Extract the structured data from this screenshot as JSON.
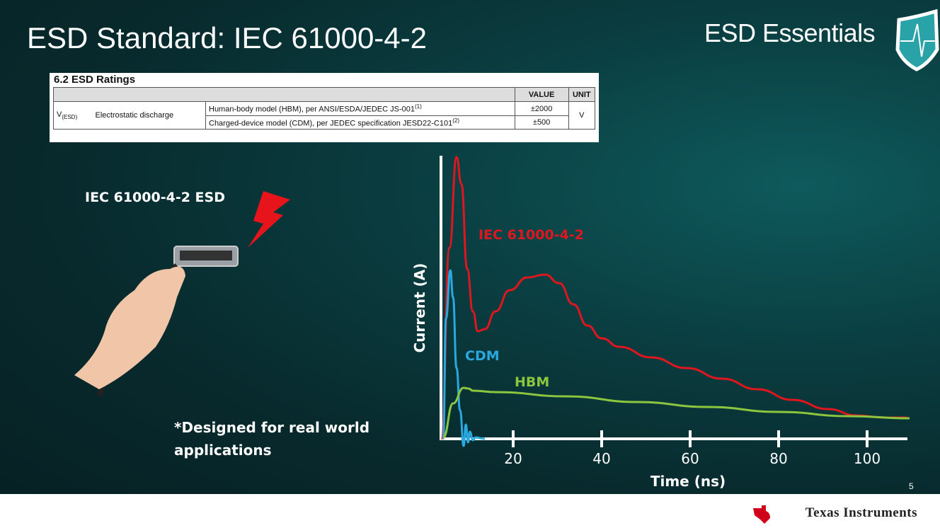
{
  "slide": {
    "title": "ESD Standard: IEC 61000-4-2",
    "brand": "ESD Essentials",
    "page_number": "5",
    "footer_logo": "Texas Instruments",
    "accent": "#0a3d40"
  },
  "ratings": {
    "heading": "6.2  ESD Ratings",
    "col_value": "VALUE",
    "col_unit": "UNIT",
    "symbol": "V",
    "symbol_sub": "(ESD)",
    "parameter": "Electrostatic discharge",
    "rows": [
      {
        "condition": "Human-body model (HBM), per ANSI/ESDA/JEDEC JS-001",
        "note": "(1)",
        "value": "±2000"
      },
      {
        "condition": "Charged-device model (CDM), per JEDEC specification JESD22-C101",
        "note": "(2)",
        "value": "±500"
      }
    ],
    "unit": "V"
  },
  "illustration": {
    "label": "IEC 61000-4-2 ESD",
    "caption_line1": "*Designed for real world",
    "caption_line2": "applications"
  },
  "chart_data": {
    "type": "line",
    "xlabel": "Time (ns)",
    "ylabel": "Current (A)",
    "xticks": [
      20,
      40,
      60,
      80,
      100
    ],
    "xlim": [
      0,
      110
    ],
    "ylim": [
      -5,
      100
    ],
    "grid": false,
    "series": [
      {
        "name": "IEC 61000-4-2",
        "color": "#e0161e",
        "x": [
          3.8,
          5.6,
          7.2,
          8.3,
          9.6,
          10.9,
          12,
          13.6,
          16,
          19.2,
          23.2,
          27.2,
          30.4,
          33.6,
          36.8,
          40,
          44,
          51.2,
          59.2,
          67.2,
          75.2,
          83.2,
          91.2,
          97.6,
          104,
          109.1
        ],
        "y": [
          0,
          67.5,
          99.5,
          90,
          60,
          45,
          38,
          38.75,
          45,
          52.5,
          57,
          58,
          55,
          47.5,
          40,
          35.5,
          32.5,
          28.75,
          25,
          21.25,
          17.5,
          13.75,
          10.5,
          8.25,
          7.5,
          7.5
        ]
      },
      {
        "name": "CDM",
        "color": "#2aa8e0",
        "x": [
          4.2,
          4.8,
          5.8,
          6.4,
          7.2,
          8,
          8.8,
          9.3,
          9.8,
          10.2,
          10.9,
          11.5,
          13.6
        ],
        "y": [
          0,
          42.5,
          59.5,
          50,
          25,
          10,
          -2.5,
          5,
          -1.25,
          2.5,
          -0.5,
          0.5,
          0
        ]
      },
      {
        "name": "HBM",
        "color": "#8cc63f",
        "x": [
          4.2,
          6.4,
          8.8,
          9.9,
          10.9,
          16,
          32,
          48,
          64,
          80,
          96,
          109.6
        ],
        "y": [
          0.5,
          12.5,
          18,
          17.75,
          17,
          16.5,
          15,
          13,
          11.25,
          9.5,
          8,
          7.25
        ]
      }
    ]
  }
}
